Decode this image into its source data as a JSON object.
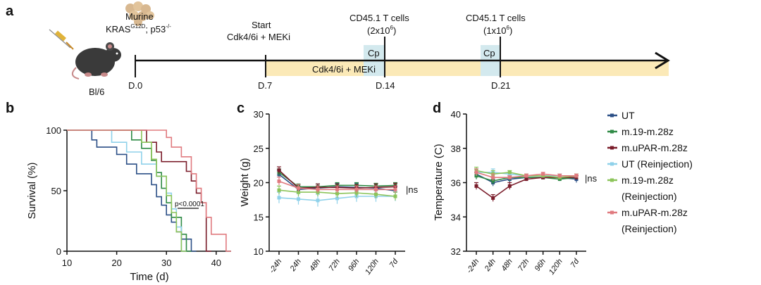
{
  "panels": {
    "a": "a",
    "b": "b",
    "c": "c",
    "d": "d"
  },
  "timeline": {
    "tumor_line1": "Murine",
    "tumor_kras": "KRAS",
    "tumor_kras_sup": "G12D",
    "tumor_p53": "; p53",
    "tumor_p53_sup": "-/-",
    "mouse_label": "Bl/6",
    "start_line1": "Start",
    "start_line2": "Cdk4/6i + MEKi",
    "tcells1_line1": "CD45.1 T cells",
    "tcells1_line2": "(2x10",
    "tcells1_exp": "6",
    "tcells2_line1": "CD45.1 T cells",
    "tcells2_line2": "(1x10",
    "tcells2_exp": "6",
    "bar_label": "Cdk4/6i + MEKi",
    "cp_label": "Cp",
    "days": [
      "D.0",
      "D.7",
      "D.14",
      "D.21"
    ],
    "colors": {
      "treatment": "#fbe9b7",
      "cp": "#d3e9ee"
    }
  },
  "legend": [
    {
      "label": "UT",
      "color": "#2b4f86"
    },
    {
      "label": "m.19-m.28z",
      "color": "#2f8a45"
    },
    {
      "label": "m.uPAR-m.28z",
      "color": "#7a1c2a"
    },
    {
      "label": "UT (Reinjection)",
      "color": "#8fd1ea"
    },
    {
      "label": "m.19-m.28z",
      "label2": "(Reinjection)",
      "color": "#8cc45a"
    },
    {
      "label": "m.uPAR-m.28z",
      "label2": "(Reinjection)",
      "color": "#e07a7f"
    }
  ],
  "chart_data": [
    {
      "panel": "b",
      "type": "line",
      "subtype": "kaplan-meier step",
      "xlabel": "Time (d)",
      "ylabel": "Survival (%)",
      "xlim": [
        10,
        43
      ],
      "ylim": [
        0,
        100
      ],
      "xticks": [
        10,
        20,
        30,
        40
      ],
      "yticks": [
        0,
        50,
        100
      ],
      "annotation": "p<0.0001",
      "series": [
        {
          "name": "UT",
          "color": "#2b4f86",
          "points": [
            [
              10,
              100
            ],
            [
              15,
              100
            ],
            [
              15,
              92
            ],
            [
              16,
              92
            ],
            [
              16,
              86
            ],
            [
              20,
              86
            ],
            [
              20,
              80
            ],
            [
              22,
              80
            ],
            [
              22,
              72
            ],
            [
              24,
              72
            ],
            [
              24,
              64
            ],
            [
              27,
              64
            ],
            [
              27,
              55
            ],
            [
              28,
              55
            ],
            [
              28,
              45
            ],
            [
              29,
              45
            ],
            [
              29,
              38
            ],
            [
              30,
              38
            ],
            [
              30,
              30
            ],
            [
              31,
              30
            ],
            [
              31,
              24
            ],
            [
              32,
              24
            ],
            [
              32,
              16
            ],
            [
              33,
              16
            ],
            [
              33,
              10
            ],
            [
              35,
              10
            ],
            [
              35,
              0
            ],
            [
              36,
              0
            ]
          ]
        },
        {
          "name": "m.19-m.28z",
          "color": "#2f8a45",
          "points": [
            [
              10,
              100
            ],
            [
              23,
              100
            ],
            [
              23,
              92
            ],
            [
              25,
              92
            ],
            [
              25,
              85
            ],
            [
              27,
              85
            ],
            [
              27,
              75
            ],
            [
              28,
              75
            ],
            [
              28,
              65
            ],
            [
              29,
              65
            ],
            [
              29,
              52
            ],
            [
              30,
              52
            ],
            [
              30,
              40
            ],
            [
              31,
              40
            ],
            [
              31,
              28
            ],
            [
              33,
              28
            ],
            [
              33,
              14
            ],
            [
              34,
              14
            ],
            [
              34,
              0
            ],
            [
              35,
              0
            ]
          ]
        },
        {
          "name": "m.uPAR-m.28z",
          "color": "#7a1c2a",
          "points": [
            [
              10,
              100
            ],
            [
              26,
              100
            ],
            [
              26,
              90
            ],
            [
              28,
              90
            ],
            [
              28,
              82
            ],
            [
              29,
              82
            ],
            [
              29,
              74
            ],
            [
              34,
              74
            ],
            [
              34,
              66
            ],
            [
              35,
              66
            ],
            [
              35,
              58
            ],
            [
              36,
              58
            ],
            [
              36,
              48
            ],
            [
              37,
              48
            ],
            [
              37,
              40
            ],
            [
              38,
              40
            ],
            [
              38,
              0
            ],
            [
              39,
              0
            ]
          ]
        },
        {
          "name": "UT (Reinjection)",
          "color": "#8fd1ea",
          "points": [
            [
              10,
              100
            ],
            [
              19,
              100
            ],
            [
              19,
              90
            ],
            [
              22,
              90
            ],
            [
              22,
              82
            ],
            [
              25,
              82
            ],
            [
              25,
              72
            ],
            [
              28,
              72
            ],
            [
              28,
              62
            ],
            [
              30,
              62
            ],
            [
              30,
              48
            ],
            [
              31,
              48
            ],
            [
              31,
              35
            ],
            [
              32,
              35
            ],
            [
              32,
              20
            ],
            [
              33,
              20
            ],
            [
              33,
              0
            ],
            [
              34,
              0
            ]
          ]
        },
        {
          "name": "m.19-m.28z (Reinjection)",
          "color": "#8cc45a",
          "points": [
            [
              10,
              100
            ],
            [
              25,
              100
            ],
            [
              25,
              90
            ],
            [
              27,
              90
            ],
            [
              27,
              76
            ],
            [
              28,
              76
            ],
            [
              28,
              62
            ],
            [
              30,
              62
            ],
            [
              30,
              46
            ],
            [
              31,
              46
            ],
            [
              31,
              32
            ],
            [
              32,
              32
            ],
            [
              32,
              16
            ],
            [
              33,
              16
            ],
            [
              33,
              0
            ],
            [
              34,
              0
            ]
          ]
        },
        {
          "name": "m.uPAR-m.28z (Reinjection)",
          "color": "#e07a7f",
          "points": [
            [
              10,
              100
            ],
            [
              30,
              100
            ],
            [
              30,
              94
            ],
            [
              31,
              94
            ],
            [
              31,
              86
            ],
            [
              33,
              86
            ],
            [
              33,
              78
            ],
            [
              35,
              78
            ],
            [
              35,
              64
            ],
            [
              36,
              64
            ],
            [
              36,
              52
            ],
            [
              37,
              52
            ],
            [
              37,
              40
            ],
            [
              38,
              40
            ],
            [
              38,
              28
            ],
            [
              39,
              28
            ],
            [
              39,
              14
            ],
            [
              42,
              14
            ],
            [
              42,
              0
            ],
            [
              43,
              0
            ]
          ]
        }
      ]
    },
    {
      "panel": "c",
      "type": "line",
      "xlabel": "",
      "ylabel": "Weight (g)",
      "categories": [
        "-24h",
        "24h",
        "48h",
        "72h",
        "96h",
        "120h",
        "7d"
      ],
      "ylim": [
        10,
        30
      ],
      "yticks": [
        10,
        15,
        20,
        25,
        30
      ],
      "annotation": "ns",
      "series": [
        {
          "name": "UT",
          "color": "#2b4f86",
          "values": [
            21.2,
            19.0,
            19.2,
            19.4,
            19.3,
            19.2,
            18.8
          ],
          "err": [
            0.6,
            0.5,
            0.6,
            0.5,
            0.6,
            0.6,
            0.6
          ]
        },
        {
          "name": "m.19-m.28z",
          "color": "#2f8a45",
          "values": [
            21.5,
            19.4,
            19.4,
            19.6,
            19.6,
            19.5,
            19.6
          ],
          "err": [
            0.5,
            0.4,
            0.4,
            0.4,
            0.4,
            0.4,
            0.4
          ]
        },
        {
          "name": "m.uPAR-m.28z",
          "color": "#7a1c2a",
          "values": [
            21.8,
            19.2,
            19.3,
            19.3,
            19.2,
            19.3,
            19.4
          ],
          "err": [
            0.5,
            0.5,
            0.5,
            0.5,
            0.5,
            0.5,
            0.5
          ]
        },
        {
          "name": "UT (Reinjection)",
          "color": "#8fd1ea",
          "values": [
            17.8,
            17.6,
            17.4,
            17.7,
            18.0,
            18.0,
            18.0
          ],
          "err": [
            0.8,
            0.8,
            0.9,
            0.8,
            0.8,
            0.8,
            0.7
          ]
        },
        {
          "name": "m.19-m.28z (Reinjection)",
          "color": "#8cc45a",
          "values": [
            18.9,
            18.6,
            18.6,
            18.4,
            18.5,
            18.3,
            18.0
          ],
          "err": [
            0.6,
            0.6,
            0.6,
            0.6,
            0.6,
            0.6,
            0.6
          ]
        },
        {
          "name": "m.uPAR-m.28z (Reinjection)",
          "color": "#e07a7f",
          "values": [
            20.2,
            19.2,
            19.0,
            19.0,
            19.0,
            19.0,
            19.0
          ],
          "err": [
            0.6,
            0.5,
            0.5,
            0.5,
            0.5,
            0.5,
            0.5
          ]
        }
      ]
    },
    {
      "panel": "d",
      "type": "line",
      "xlabel": "",
      "ylabel": "Temperature (C)",
      "categories": [
        "-24h",
        "24h",
        "48h",
        "72h",
        "96h",
        "120h",
        "7d"
      ],
      "ylim": [
        32,
        40
      ],
      "yticks": [
        32,
        34,
        36,
        38,
        40
      ],
      "annotation": "ns",
      "series": [
        {
          "name": "UT",
          "color": "#2b4f86",
          "values": [
            36.5,
            36.0,
            36.2,
            36.3,
            36.3,
            36.3,
            36.2
          ],
          "err": [
            0.3,
            0.2,
            0.2,
            0.1,
            0.1,
            0.1,
            0.2
          ]
        },
        {
          "name": "m.19-m.28z",
          "color": "#2f8a45",
          "values": [
            36.4,
            36.1,
            36.3,
            36.3,
            36.3,
            36.2,
            36.3
          ],
          "err": [
            0.2,
            0.2,
            0.2,
            0.1,
            0.1,
            0.1,
            0.1
          ]
        },
        {
          "name": "m.uPAR-m.28z",
          "color": "#7a1c2a",
          "values": [
            35.8,
            35.1,
            35.8,
            36.2,
            36.3,
            36.3,
            36.3
          ],
          "err": [
            0.2,
            0.2,
            0.2,
            0.1,
            0.1,
            0.1,
            0.1
          ]
        },
        {
          "name": "UT (Reinjection)",
          "color": "#8fd1ea",
          "values": [
            36.6,
            36.6,
            36.5,
            36.4,
            36.4,
            36.4,
            36.4
          ],
          "err": [
            0.2,
            0.2,
            0.1,
            0.1,
            0.1,
            0.1,
            0.1
          ]
        },
        {
          "name": "m.19-m.28z (Reinjection)",
          "color": "#8cc45a",
          "values": [
            36.7,
            36.5,
            36.6,
            36.4,
            36.4,
            36.3,
            36.4
          ],
          "err": [
            0.2,
            0.2,
            0.1,
            0.1,
            0.1,
            0.1,
            0.1
          ]
        },
        {
          "name": "m.uPAR-m.28z (Reinjection)",
          "color": "#e07a7f",
          "values": [
            36.6,
            36.3,
            36.3,
            36.4,
            36.5,
            36.4,
            36.4
          ],
          "err": [
            0.2,
            0.2,
            0.1,
            0.1,
            0.1,
            0.1,
            0.1
          ]
        }
      ]
    }
  ]
}
